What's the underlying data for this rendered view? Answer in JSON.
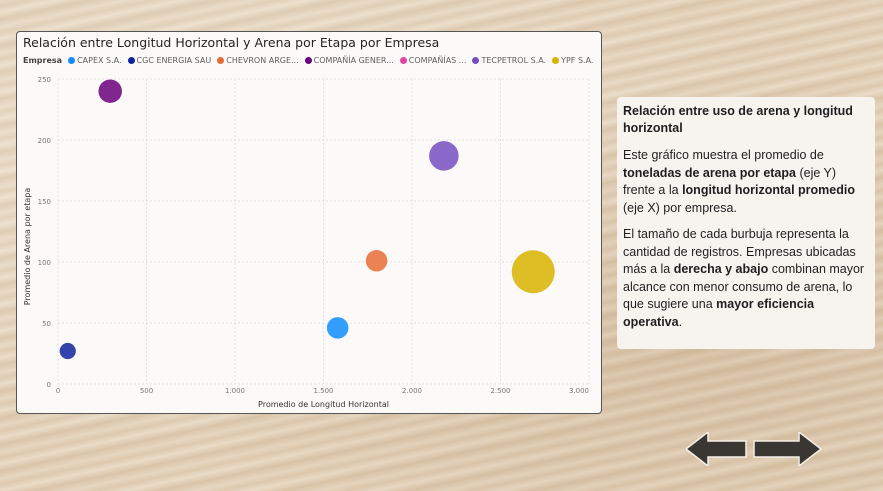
{
  "chart_data": {
    "type": "scatter",
    "title": "Relación entre Longitud Horizontal y Arena por Etapa por Empresa",
    "xlabel": "Promedio de Longitud Horizontal",
    "ylabel": "Promedio de Arena por etapa",
    "xlim": [
      0,
      3000
    ],
    "ylim": [
      0,
      250
    ],
    "x_ticks": [
      {
        "value": 0,
        "label": "0"
      },
      {
        "value": 500,
        "label": "500"
      },
      {
        "value": 1000,
        "label": "1.000"
      },
      {
        "value": 1500,
        "label": "1.500"
      },
      {
        "value": 2000,
        "label": "2.000"
      },
      {
        "value": 2500,
        "label": "2.500"
      },
      {
        "value": 3000,
        "label": "3.000"
      }
    ],
    "y_ticks": [
      {
        "value": 0,
        "label": "0"
      },
      {
        "value": 50,
        "label": "50"
      },
      {
        "value": 100,
        "label": "100"
      },
      {
        "value": 150,
        "label": "150"
      },
      {
        "value": 200,
        "label": "200"
      },
      {
        "value": 250,
        "label": "250"
      }
    ],
    "grid": true,
    "legend_title": "Empresa",
    "legend_position": "top-left",
    "series": [
      {
        "name": "CAPEX S.A.",
        "color": "#118dff",
        "x": 1580,
        "y": 46,
        "size": 3
      },
      {
        "name": "CGC ENERGIA SAU",
        "color": "#12239e",
        "x": 55,
        "y": 27,
        "size": 1
      },
      {
        "name": "CHEVRON ARGE...",
        "color": "#e66c37",
        "x": 1800,
        "y": 101,
        "size": 3
      },
      {
        "name": "COMPAÑÍA GENER...",
        "color": "#6b007b",
        "x": 295,
        "y": 240,
        "size": 4
      },
      {
        "name": "COMPAÑÍAS ...",
        "color": "#e044a7",
        "x": null,
        "y": null,
        "size": 0
      },
      {
        "name": "TECPETROL S.A.",
        "color": "#744ec2",
        "x": 2180,
        "y": 187,
        "size": 8
      },
      {
        "name": "YPF S.A.",
        "color": "#d9b300",
        "x": 2685,
        "y": 92,
        "size": 22
      }
    ]
  },
  "info": {
    "title": "Relación entre uso de arena y longitud horizontal",
    "p1": {
      "a": "Este gráfico muestra el promedio de ",
      "b": "toneladas de arena por etapa",
      "c": " (eje Y) frente a la ",
      "d": "longitud horizontal promedio",
      "e": " (eje X) por empresa."
    },
    "p2": {
      "a": "El tamaño de cada burbuja representa la cantidad de registros. Empresas ubicadas más a la ",
      "b": "derecha y abajo",
      "c": " combinan mayor alcance con menor consumo de arena, lo que sugiere una ",
      "d": "mayor eficiencia operativa",
      "e": "."
    }
  },
  "nav": {
    "prev_icon": "arrow-left-icon",
    "next_icon": "arrow-right-icon",
    "color": "#3a3631"
  }
}
